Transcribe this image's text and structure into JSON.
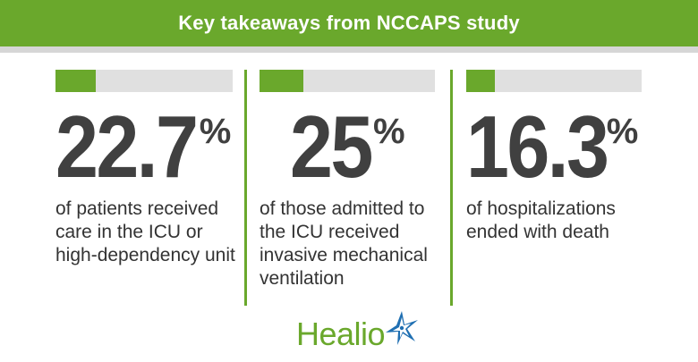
{
  "header": {
    "title": "Key takeaways from NCCAPS study"
  },
  "stats": [
    {
      "value": "22.7",
      "unit": "%",
      "fill_fraction": 0.227,
      "description": "of patients received care in the ICU or high-dependency unit"
    },
    {
      "value": "25",
      "unit": "%",
      "fill_fraction": 0.25,
      "description": "of those admitted to the ICU received invasive mechanical ventilation"
    },
    {
      "value": "16.3",
      "unit": "%",
      "fill_fraction": 0.163,
      "description": "of hospitalizations ended with death"
    }
  ],
  "logo": {
    "text": "Healio",
    "icon": "star-burst-icon"
  },
  "colors": {
    "accent_green": "#6aa82c",
    "bar_track": "#e0e0e0",
    "stat_text": "#404040",
    "logo_star_blue": "#1f6fb2"
  }
}
